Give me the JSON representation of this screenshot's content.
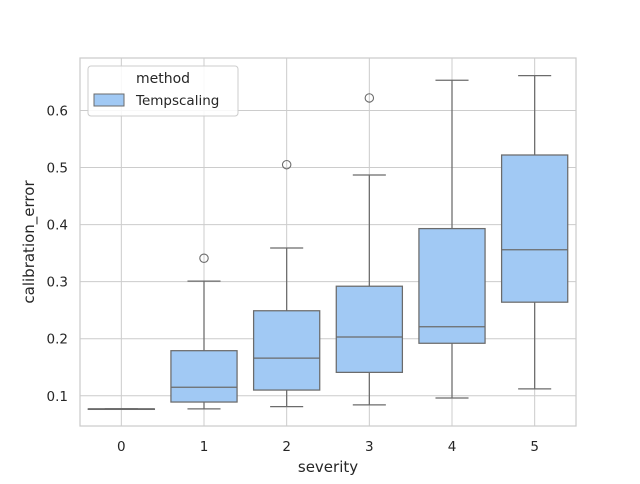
{
  "chart_data": {
    "type": "box",
    "title": "",
    "xlabel": "severity",
    "ylabel": "calibration_error",
    "categories": [
      "0",
      "1",
      "2",
      "3",
      "4",
      "5"
    ],
    "ylim": [
      0.047,
      0.692
    ],
    "yticks": [
      0.1,
      0.2,
      0.3,
      0.4,
      0.5,
      0.6
    ],
    "ytick_labels": [
      "0.1",
      "0.2",
      "0.3",
      "0.4",
      "0.5",
      "0.6"
    ],
    "grid": true,
    "legend": {
      "title": "method",
      "placement": "top-left",
      "entries": [
        "Tempscaling"
      ]
    },
    "colors": {
      "box_fill": "#a1c9f4",
      "line": "#6b6b6b",
      "grid": "#cccccc",
      "frame": "#cccccc",
      "text": "#262626"
    },
    "series": [
      {
        "name": "Tempscaling",
        "boxes": [
          {
            "category": "0",
            "whisker_low": 0.077,
            "q1": 0.077,
            "median": 0.077,
            "q3": 0.077,
            "whisker_high": 0.077,
            "outliers": []
          },
          {
            "category": "1",
            "whisker_low": 0.077,
            "q1": 0.089,
            "median": 0.115,
            "q3": 0.179,
            "whisker_high": 0.301,
            "outliers": [
              0.341
            ]
          },
          {
            "category": "2",
            "whisker_low": 0.081,
            "q1": 0.11,
            "median": 0.166,
            "q3": 0.249,
            "whisker_high": 0.359,
            "outliers": [
              0.505
            ]
          },
          {
            "category": "3",
            "whisker_low": 0.084,
            "q1": 0.141,
            "median": 0.203,
            "q3": 0.292,
            "whisker_high": 0.487,
            "outliers": [
              0.622
            ]
          },
          {
            "category": "4",
            "whisker_low": 0.096,
            "q1": 0.192,
            "median": 0.221,
            "q3": 0.393,
            "whisker_high": 0.653,
            "outliers": []
          },
          {
            "category": "5",
            "whisker_low": 0.112,
            "q1": 0.264,
            "median": 0.356,
            "q3": 0.522,
            "whisker_high": 0.661,
            "outliers": []
          }
        ]
      }
    ]
  }
}
